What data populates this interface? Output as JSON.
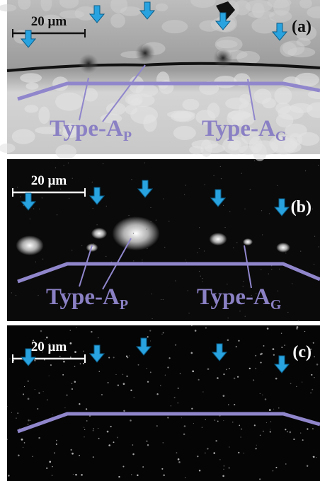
{
  "panels": [
    {
      "label": "(a)",
      "scale_bar": "20 µm",
      "annotations": [
        {
          "text": "Type-A",
          "subscript": "P"
        },
        {
          "text": "Type-A",
          "subscript": "G"
        }
      ]
    },
    {
      "label": "(b)",
      "scale_bar": "20 µm",
      "annotations": [
        {
          "text": "Type-A",
          "subscript": "P"
        },
        {
          "text": "Type-A",
          "subscript": "G"
        }
      ]
    },
    {
      "label": "(c)",
      "scale_bar": "20 µm",
      "annotations": []
    }
  ]
}
